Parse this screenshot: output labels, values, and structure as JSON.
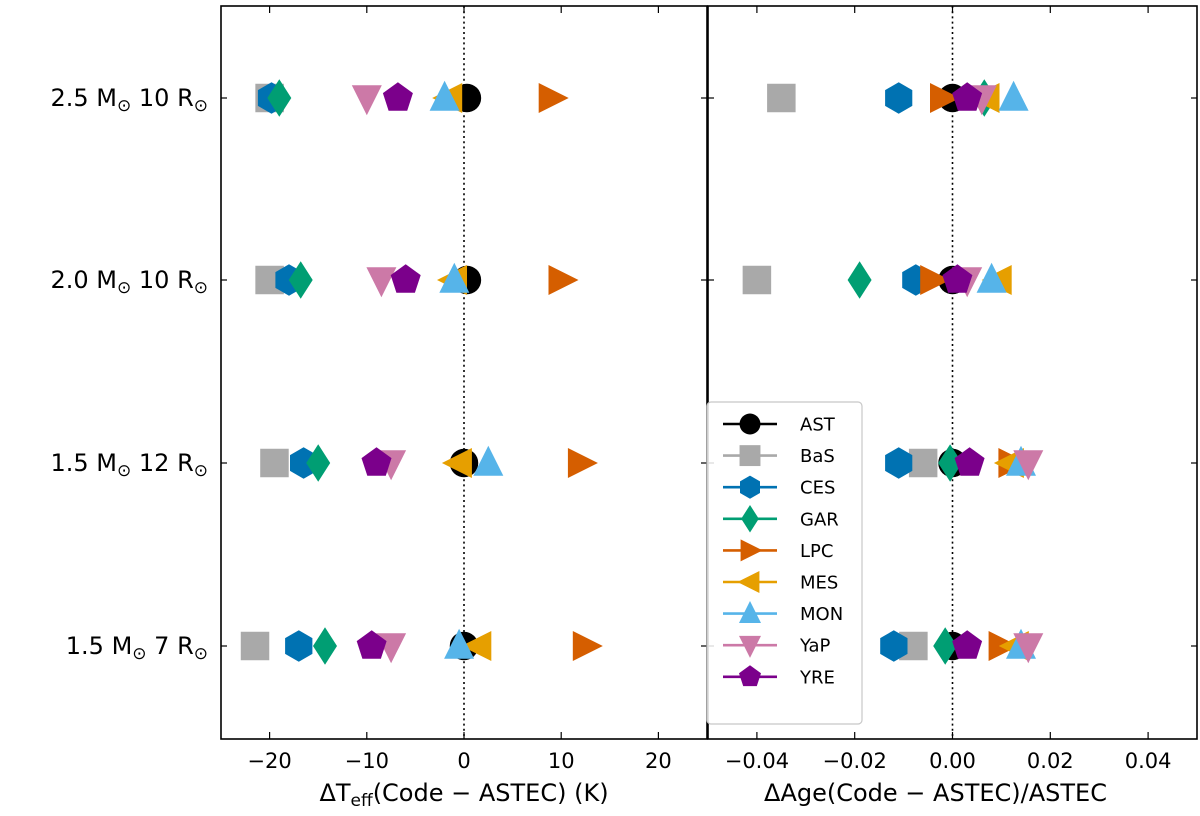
{
  "chart_data": {
    "type": "scatter",
    "series_styles": [
      {
        "name": "AST",
        "marker": "circle",
        "color": "#000000"
      },
      {
        "name": "BaS",
        "marker": "square",
        "color": "#a9a9a9"
      },
      {
        "name": "CES",
        "marker": "hexagon",
        "color": "#0072b2"
      },
      {
        "name": "GAR",
        "marker": "thin-diamond",
        "color": "#009e73"
      },
      {
        "name": "LPC",
        "marker": "triangle-right",
        "color": "#d55e00"
      },
      {
        "name": "MES",
        "marker": "triangle-left",
        "color": "#e69f00"
      },
      {
        "name": "MON",
        "marker": "triangle-up",
        "color": "#56b4e9"
      },
      {
        "name": "YaP",
        "marker": "triangle-down",
        "color": "#cc79a7"
      },
      {
        "name": "YRE",
        "marker": "pentagon",
        "color": "#7b008b"
      }
    ],
    "models": [
      {
        "mass": "2.5",
        "radius": "10"
      },
      {
        "mass": "2.0",
        "radius": "10"
      },
      {
        "mass": "1.5",
        "radius": "12"
      },
      {
        "mass": "1.5",
        "radius": "7"
      }
    ],
    "units": {
      "mass": "M",
      "radius": "R",
      "solar": "⊙"
    },
    "panels": [
      {
        "xlabel_prefix": "ΔT",
        "xlabel_sub": "eff",
        "xlabel_rest": "(Code − ASTEC) (K)",
        "xlim": [
          -25,
          25
        ],
        "xticks": [
          -20,
          -10,
          0,
          10,
          20
        ],
        "xtick_labels": [
          "−20",
          "−10",
          "0",
          "10",
          "20"
        ],
        "ref_line": 0,
        "values": {
          "AST": [
            0.3,
            0.3,
            0.0,
            0.0
          ],
          "BaS": [
            -20.0,
            -20.0,
            -19.5,
            -21.5
          ],
          "CES": [
            -19.8,
            -18.0,
            -16.5,
            -17.0
          ],
          "GAR": [
            -19.0,
            -16.8,
            -15.0,
            -14.3
          ],
          "LPC": [
            9.0,
            10.0,
            12.0,
            12.5
          ],
          "MES": [
            -1.5,
            -1.0,
            -0.5,
            1.5
          ],
          "MON": [
            -2.0,
            -1.0,
            2.5,
            -0.5
          ],
          "YaP": [
            -10.0,
            -8.5,
            -7.5,
            -7.5
          ],
          "YRE": [
            -6.8,
            -6.0,
            -9.0,
            -9.5
          ]
        }
      },
      {
        "xlabel_prefix": "ΔAge(Code − ASTEC)/ASTEC",
        "xlabel_sub": "",
        "xlabel_rest": "",
        "xlim": [
          -0.05,
          0.05
        ],
        "xticks": [
          -0.04,
          -0.02,
          0.0,
          0.02,
          0.04
        ],
        "xtick_labels": [
          "−0.04",
          "−0.02",
          "0.00",
          "0.02",
          "0.04"
        ],
        "ref_line": 0,
        "values": {
          "AST": [
            0.0,
            0.0,
            0.0,
            0.0
          ],
          "BaS": [
            -0.035,
            -0.04,
            -0.006,
            -0.008
          ],
          "CES": [
            -0.011,
            -0.0075,
            -0.011,
            -0.012
          ],
          "GAR": [
            0.0065,
            -0.019,
            -0.0005,
            -0.0015
          ],
          "LPC": [
            -0.002,
            -0.004,
            0.012,
            0.01
          ],
          "MES": [
            0.007,
            0.0095,
            0.012,
            0.013
          ],
          "MON": [
            0.0125,
            0.008,
            0.014,
            0.014
          ],
          "YaP": [
            0.006,
            0.003,
            0.0155,
            0.0155
          ],
          "YRE": [
            0.003,
            0.001,
            0.0035,
            0.003
          ]
        }
      }
    ]
  }
}
